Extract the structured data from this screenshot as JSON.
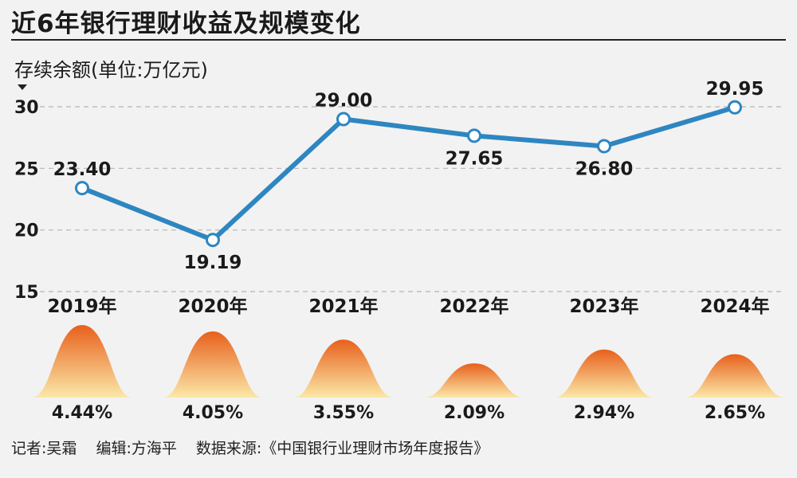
{
  "title": "近6年银行理财收益及规模变化",
  "unit_label": "存续余额(单位:万亿元)",
  "footer": {
    "reporter": "记者:吴霜",
    "editor": "编辑:方海平",
    "source": "数据来源:《中国银行业理财市场年度报告》"
  },
  "colors": {
    "line": "#2e86c1",
    "mountain_top": "#e8601c",
    "mountain_bottom": "#fbe8a8"
  },
  "chart_data": [
    {
      "type": "line",
      "ylabel": "存续余额(单位:万亿元)",
      "ylim": [
        15,
        30
      ],
      "yticks": [
        15,
        20,
        25,
        30
      ],
      "grid": true,
      "x": [
        "2019年",
        "2020年",
        "2021年",
        "2022年",
        "2023年",
        "2024年"
      ],
      "values": [
        23.4,
        19.19,
        29.0,
        27.65,
        26.8,
        29.95
      ],
      "value_labels": [
        "23.40",
        "19.19",
        "29.00",
        "27.65",
        "26.80",
        "29.95"
      ]
    },
    {
      "type": "area",
      "categories": [
        "2019年",
        "2020年",
        "2021年",
        "2022年",
        "2023年",
        "2024年"
      ],
      "values": [
        4.44,
        4.05,
        3.55,
        2.09,
        2.94,
        2.65
      ],
      "value_labels": [
        "4.44%",
        "4.05%",
        "3.55%",
        "2.09%",
        "2.94%",
        "2.65%"
      ]
    }
  ]
}
